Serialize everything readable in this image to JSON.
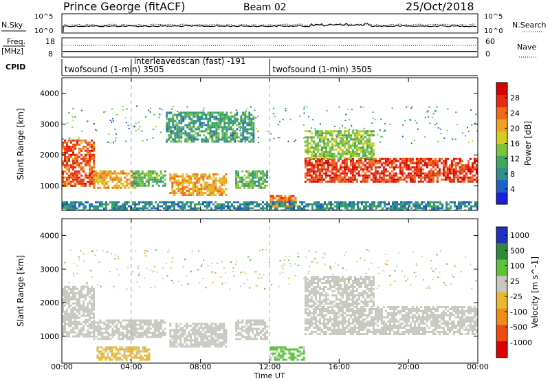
{
  "header": {
    "station": "Prince George (fitACF)",
    "beam": "Beam 02",
    "date": "25/Oct/2018"
  },
  "aux_labels": {
    "nsky": "N.Sky",
    "nsearch": "N.Search",
    "freq_top": "Freq.",
    "freq_unit": "[MHz]",
    "cpid": "CPID",
    "nave": "Nave",
    "nsky_ticks": [
      "10^5",
      "10^0"
    ],
    "nsearch_ticks": [
      "10^5",
      "10^0"
    ],
    "freq_ticks": [
      "18",
      "8"
    ],
    "nave_ticks": [
      "60",
      "0"
    ]
  },
  "cpid_segments": [
    {
      "label": "twofsound (1-min) 3505",
      "start_hour": 0
    },
    {
      "label": "interleavedscan (fast) -191",
      "start_hour": 4
    },
    {
      "label": "twofsound (1-min) 3505",
      "start_hour": 12
    }
  ],
  "chart_data": [
    {
      "type": "heatmap",
      "title": "Power",
      "ylabel": "Slant Range [km]",
      "xlabel": "",
      "xlim": [
        0,
        24
      ],
      "ylim": [
        200,
        4500
      ],
      "x_ticks": [
        "00:00",
        "04:00",
        "08:00",
        "12:00",
        "16:00",
        "20:00",
        "00:00"
      ],
      "y_ticks": [
        1000,
        2000,
        3000,
        4000
      ],
      "vertical_markers_hour": [
        4,
        12
      ],
      "colorbar": {
        "label": "Power [dB]",
        "ticks": [
          4,
          8,
          12,
          16,
          20,
          24,
          28
        ],
        "colors": [
          "#1e1ee0",
          "#1f5fc8",
          "#2e8f8f",
          "#3fa85a",
          "#7dc43a",
          "#d4cc22",
          "#f4a020",
          "#f26a18",
          "#e82a10",
          "#d90000"
        ]
      },
      "regions": [
        {
          "x": [
            0.0,
            1.8
          ],
          "y": [
            1000,
            2500
          ],
          "level": 24
        },
        {
          "x": [
            1.8,
            4.2
          ],
          "y": [
            900,
            1500
          ],
          "level": 20
        },
        {
          "x": [
            4.0,
            6.0
          ],
          "y": [
            1000,
            1500
          ],
          "level": 12
        },
        {
          "x": [
            6.2,
            9.5
          ],
          "y": [
            700,
            1400
          ],
          "level": 20
        },
        {
          "x": [
            10.0,
            11.8
          ],
          "y": [
            900,
            1500
          ],
          "level": 12
        },
        {
          "x": [
            12.0,
            13.5
          ],
          "y": [
            300,
            700
          ],
          "level": 22
        },
        {
          "x": [
            14.0,
            24.0
          ],
          "y": [
            1100,
            1900
          ],
          "level": 26
        },
        {
          "x": [
            14.0,
            18.0
          ],
          "y": [
            1900,
            2800
          ],
          "level": 14
        },
        {
          "x": [
            6.0,
            11.0
          ],
          "y": [
            2400,
            3400
          ],
          "level": 10
        },
        {
          "x": [
            0.0,
            24.0
          ],
          "y": [
            200,
            500
          ],
          "level": 8
        }
      ]
    },
    {
      "type": "heatmap",
      "title": "Velocity",
      "ylabel": "Slant Range [km]",
      "xlabel": "Time UT",
      "xlim": [
        0,
        24
      ],
      "ylim": [
        200,
        4500
      ],
      "x_ticks": [
        "00:00",
        "04:00",
        "08:00",
        "12:00",
        "16:00",
        "20:00",
        "00:00"
      ],
      "y_ticks": [
        1000,
        2000,
        3000,
        4000
      ],
      "vertical_markers_hour": [
        4,
        12
      ],
      "colorbar": {
        "label": "Velocity [m s^-1]",
        "ticks": [
          1000,
          500,
          100,
          25,
          -25,
          -100,
          -500,
          -1000
        ],
        "colors": [
          "#2030c0",
          "#2f8a3a",
          "#5bc43a",
          "#c8c8c0",
          "#e8b830",
          "#f08a1a",
          "#f04a10",
          "#e00000"
        ]
      },
      "regions": [
        {
          "x": [
            0.0,
            1.8
          ],
          "y": [
            1000,
            2500
          ],
          "velocity": 0
        },
        {
          "x": [
            1.8,
            4.2
          ],
          "y": [
            900,
            1500
          ],
          "velocity": 0
        },
        {
          "x": [
            4.0,
            6.0
          ],
          "y": [
            1000,
            1500
          ],
          "velocity": 0
        },
        {
          "x": [
            6.2,
            9.5
          ],
          "y": [
            700,
            1400
          ],
          "velocity": 0
        },
        {
          "x": [
            10.0,
            11.8
          ],
          "y": [
            900,
            1500
          ],
          "velocity": 0
        },
        {
          "x": [
            2.0,
            5.0
          ],
          "y": [
            300,
            700
          ],
          "velocity": -100
        },
        {
          "x": [
            12.0,
            14.0
          ],
          "y": [
            300,
            700
          ],
          "velocity": 100
        },
        {
          "x": [
            14.0,
            24.0
          ],
          "y": [
            1100,
            1900
          ],
          "velocity": 0
        },
        {
          "x": [
            14.0,
            18.0
          ],
          "y": [
            1900,
            2800
          ],
          "velocity": 0
        }
      ]
    }
  ]
}
